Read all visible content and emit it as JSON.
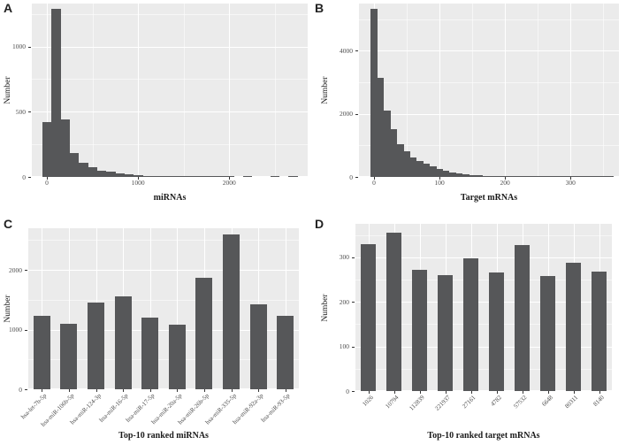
{
  "figure": {
    "background": "#ffffff",
    "panel_bg": "#ebebeb",
    "grid_color": "#ffffff",
    "bar_color": "#565759",
    "tick_text_color": "#4d4d4d",
    "title_text_color": "#1a1a1a"
  },
  "chart_data": [
    {
      "id": "A",
      "label": "A",
      "type": "histogram",
      "xlabel": "miRNAs",
      "ylabel": "Number",
      "xlim": [
        -165,
        2860
      ],
      "ylim": [
        0,
        1330
      ],
      "xticks": [
        0,
        1000,
        2000
      ],
      "yticks": [
        0,
        500,
        1000
      ],
      "bin_start": -50,
      "bin_width": 100,
      "values": [
        420,
        1290,
        440,
        180,
        110,
        75,
        50,
        38,
        28,
        20,
        14,
        10,
        7,
        5,
        4,
        3,
        2,
        2,
        1,
        1,
        1,
        0,
        1,
        0,
        0,
        1,
        0,
        1
      ],
      "grid": true,
      "legend": "none"
    },
    {
      "id": "B",
      "label": "B",
      "type": "histogram",
      "xlabel": "Target mRNAs",
      "ylabel": "Number",
      "xlim": [
        -23,
        374
      ],
      "ylim": [
        0,
        5500
      ],
      "xticks": [
        0,
        100,
        200,
        300
      ],
      "yticks": [
        0,
        2000,
        4000
      ],
      "bin_start": -5,
      "bin_width": 10,
      "values": [
        5330,
        3140,
        2100,
        1520,
        1030,
        820,
        630,
        510,
        410,
        330,
        260,
        200,
        150,
        115,
        90,
        70,
        55,
        42,
        33,
        26,
        20,
        16,
        13,
        10,
        8,
        7,
        6,
        5,
        4,
        3,
        3,
        2,
        2,
        2,
        1,
        1,
        1
      ],
      "grid": true,
      "legend": "none"
    },
    {
      "id": "C",
      "label": "C",
      "type": "bar",
      "xlabel": "Top-10 ranked miRNAs",
      "ylabel": "Number",
      "ylim": [
        0,
        2700
      ],
      "yticks": [
        0,
        1000,
        2000
      ],
      "categories": [
        "hsa-let-7b-5p",
        "hsa-miR-106b-5p",
        "hsa-miR-124-3p",
        "hsa-miR-16-5p",
        "hsa-miR-17-5p",
        "hsa-miR-20a-5p",
        "hsa-miR-26b-5p",
        "hsa-miR-335-5p",
        "hsa-miR-92a-3p",
        "hsa-miR-93-5p"
      ],
      "values": [
        1230,
        1100,
        1450,
        1560,
        1200,
        1090,
        1870,
        2590,
        1430,
        1230
      ],
      "grid": true,
      "legend": "none"
    },
    {
      "id": "D",
      "label": "D",
      "type": "bar",
      "xlabel": "Top-10 ranked target mRNAs",
      "ylabel": "Number",
      "ylim": [
        0,
        375
      ],
      "yticks": [
        0,
        100,
        200,
        300
      ],
      "categories": [
        "1026",
        "10794",
        "112839",
        "221937",
        "27161",
        "4782",
        "57532",
        "6648",
        "80311",
        "8140"
      ],
      "values": [
        329,
        356,
        272,
        259,
        298,
        265,
        327,
        257,
        287,
        267
      ],
      "grid": true,
      "legend": "none"
    }
  ]
}
